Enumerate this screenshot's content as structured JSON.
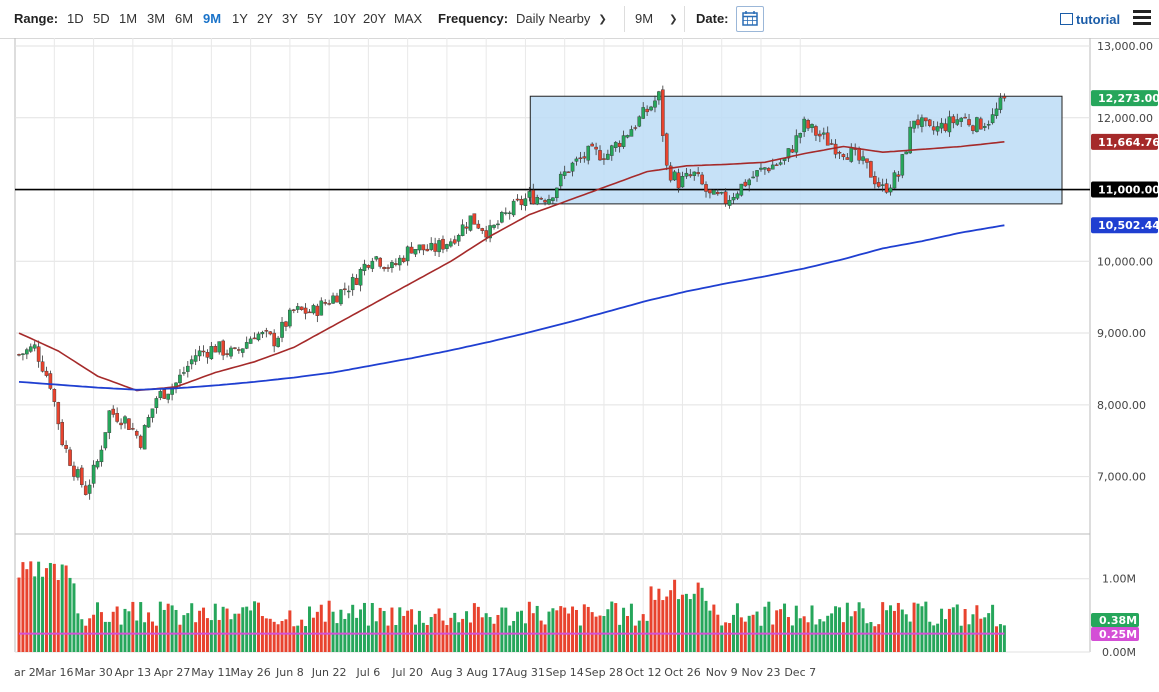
{
  "toolbar": {
    "range_label": "Range:",
    "ranges": [
      "1D",
      "5D",
      "1M",
      "3M",
      "6M",
      "9M",
      "1Y",
      "2Y",
      "3Y",
      "5Y",
      "10Y",
      "20Y",
      "MAX"
    ],
    "active_range": "9M",
    "frequency_label": "Frequency:",
    "frequency_value": "Daily Nearby",
    "period_value": "9M",
    "date_label": "Date:",
    "tutorial_label": "tutorial"
  },
  "colors": {
    "up": "#26a65b",
    "down": "#e8432e",
    "ma_short": "#a52a2a",
    "ma_long": "#1f3fd1",
    "volume_avg": "#d44fd6",
    "rect_fill": "#bcdcf6",
    "rect_stroke": "#222222"
  },
  "chart_data": {
    "type": "candlestick",
    "x_ticks": [
      "ar 2",
      "Mar 16",
      "Mar 30",
      "Apr 13",
      "Apr 27",
      "May 11",
      "May 26",
      "Jun 8",
      "Jun 22",
      "Jul 6",
      "Jul 20",
      "Aug 3",
      "Aug 17",
      "Aug 31",
      "Sep 14",
      "Sep 28",
      "Oct 12",
      "Oct 26",
      "Nov 9",
      "Nov 23",
      "Dec 7"
    ],
    "price_ticks": [
      "13,000.00",
      "12,000.00",
      "11,000.00",
      "10,000.00",
      "9,000.00",
      "8,000.00",
      "7,000.00"
    ],
    "volume_ticks": [
      "1.00M",
      "0.00M"
    ],
    "price_range": [
      6200,
      13000
    ],
    "volume_range": [
      0,
      1.4
    ],
    "price_series_tags": [
      {
        "label": "12,273.00",
        "value": 12273,
        "color": "#26a65b"
      },
      {
        "label": "11,664.76",
        "value": 11664.76,
        "color": "#a52a2a"
      },
      {
        "label": "11,000.00",
        "value": 11000,
        "color": "#000000"
      },
      {
        "label": "10,502.44",
        "value": 10502.44,
        "color": "#1f3fd1"
      }
    ],
    "volume_series_tags": [
      {
        "label": "0.38M",
        "value": 0.38,
        "color": "#26a65b"
      },
      {
        "label": "0.25M",
        "value": 0.25,
        "color": "#d44fd6"
      }
    ],
    "horizontal_line": 11000,
    "range_box": {
      "start_index": 131,
      "end_index": 210,
      "top": 12300,
      "bottom": 10800
    },
    "anchors_close": [
      [
        0,
        8700
      ],
      [
        4,
        8800
      ],
      [
        8,
        8300
      ],
      [
        11,
        7500
      ],
      [
        14,
        7100
      ],
      [
        17,
        6800
      ],
      [
        20,
        7200
      ],
      [
        23,
        7900
      ],
      [
        27,
        7800
      ],
      [
        31,
        7500
      ],
      [
        35,
        8100
      ],
      [
        40,
        8300
      ],
      [
        45,
        8700
      ],
      [
        50,
        8800
      ],
      [
        55,
        8700
      ],
      [
        60,
        9000
      ],
      [
        65,
        8900
      ],
      [
        70,
        9300
      ],
      [
        75,
        9300
      ],
      [
        80,
        9500
      ],
      [
        85,
        9700
      ],
      [
        90,
        10100
      ],
      [
        95,
        9900
      ],
      [
        100,
        10200
      ],
      [
        105,
        10150
      ],
      [
        110,
        10300
      ],
      [
        115,
        10600
      ],
      [
        120,
        10400
      ],
      [
        125,
        10700
      ],
      [
        130,
        10900
      ],
      [
        135,
        10900
      ],
      [
        140,
        11300
      ],
      [
        145,
        11500
      ],
      [
        150,
        11500
      ],
      [
        155,
        11800
      ],
      [
        160,
        12100
      ],
      [
        163,
        12300
      ],
      [
        165,
        11300
      ],
      [
        168,
        11100
      ],
      [
        172,
        11200
      ],
      [
        176,
        10900
      ],
      [
        180,
        10850
      ],
      [
        185,
        11100
      ],
      [
        190,
        11300
      ],
      [
        195,
        11400
      ],
      [
        200,
        11900
      ],
      [
        204,
        11750
      ],
      [
        208,
        11600
      ],
      [
        212,
        11500
      ],
      [
        216,
        11300
      ],
      [
        220,
        11000
      ],
      [
        224,
        11200
      ],
      [
        228,
        12000
      ],
      [
        232,
        11800
      ],
      [
        236,
        11900
      ],
      [
        240,
        12000
      ],
      [
        244,
        11900
      ],
      [
        248,
        12000
      ],
      [
        251,
        12273
      ]
    ],
    "ma_short_points": [
      [
        0,
        9000
      ],
      [
        10,
        8750
      ],
      [
        20,
        8400
      ],
      [
        30,
        8200
      ],
      [
        40,
        8250
      ],
      [
        50,
        8450
      ],
      [
        60,
        8600
      ],
      [
        70,
        8800
      ],
      [
        80,
        9100
      ],
      [
        90,
        9400
      ],
      [
        100,
        9700
      ],
      [
        110,
        10000
      ],
      [
        120,
        10350
      ],
      [
        130,
        10650
      ],
      [
        140,
        10850
      ],
      [
        150,
        11050
      ],
      [
        160,
        11250
      ],
      [
        170,
        11330
      ],
      [
        180,
        11350
      ],
      [
        190,
        11380
      ],
      [
        200,
        11500
      ],
      [
        210,
        11600
      ],
      [
        220,
        11520
      ],
      [
        230,
        11560
      ],
      [
        240,
        11600
      ],
      [
        251,
        11665
      ]
    ],
    "ma_long_points": [
      [
        0,
        8320
      ],
      [
        10,
        8280
      ],
      [
        20,
        8240
      ],
      [
        30,
        8210
      ],
      [
        40,
        8230
      ],
      [
        50,
        8270
      ],
      [
        60,
        8320
      ],
      [
        70,
        8380
      ],
      [
        80,
        8450
      ],
      [
        90,
        8550
      ],
      [
        100,
        8650
      ],
      [
        110,
        8760
      ],
      [
        120,
        8880
      ],
      [
        130,
        9010
      ],
      [
        140,
        9150
      ],
      [
        150,
        9300
      ],
      [
        160,
        9450
      ],
      [
        170,
        9580
      ],
      [
        180,
        9690
      ],
      [
        190,
        9790
      ],
      [
        200,
        9900
      ],
      [
        210,
        10030
      ],
      [
        220,
        10180
      ],
      [
        230,
        10280
      ],
      [
        240,
        10400
      ],
      [
        251,
        10502
      ]
    ],
    "volume_avg_value": 0.25,
    "ylabel": "",
    "xlabel": "",
    "title": ""
  }
}
